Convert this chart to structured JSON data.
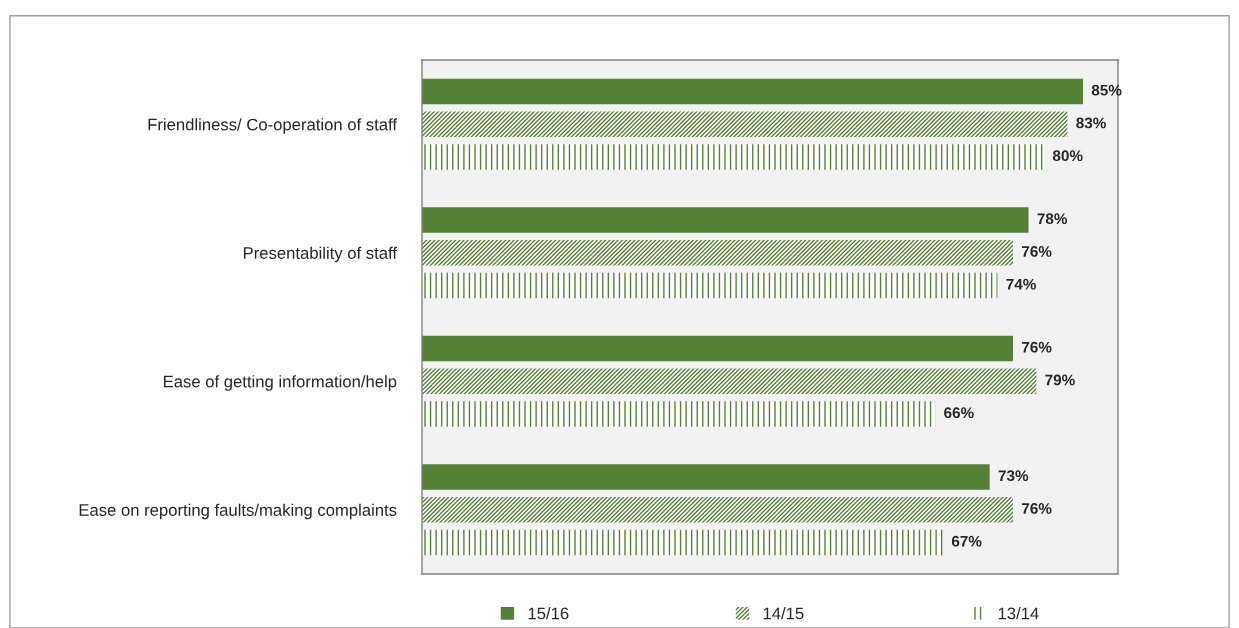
{
  "chart_data": {
    "type": "bar",
    "orientation": "horizontal",
    "categories": [
      "Friendliness/ Co-operation of staff",
      "Presentability of staff",
      "Ease of getting information/help",
      "Ease on reporting faults/making complaints"
    ],
    "series": [
      {
        "name": "15/16",
        "color": "#548235",
        "values": [
          85,
          78,
          76,
          73
        ],
        "value_labels": [
          "85%",
          "78%",
          "76%",
          "73%"
        ]
      },
      {
        "name": "14/15",
        "color": "#548235",
        "values": [
          83,
          76,
          79,
          76
        ],
        "value_labels": [
          "83%",
          "76%",
          "79%",
          "76%"
        ]
      },
      {
        "name": "13/14",
        "color": "#548235",
        "values": [
          80,
          74,
          66,
          67
        ],
        "value_labels": [
          "80%",
          "74%",
          "66%",
          "67%"
        ]
      }
    ],
    "legend": "bottom",
    "grid": false
  }
}
